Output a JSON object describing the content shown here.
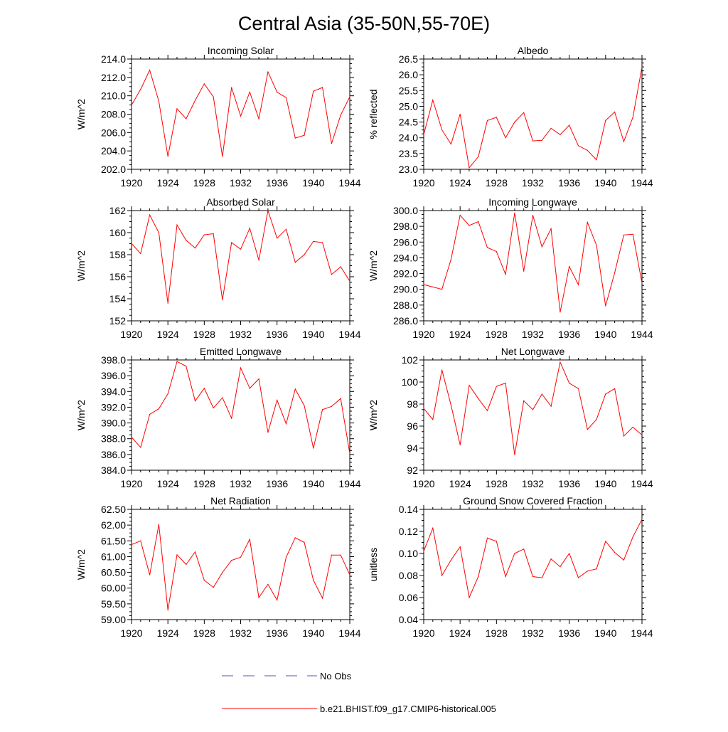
{
  "figure": {
    "title": "Central Asia (35-50N,55-70E)"
  },
  "legend": {
    "items": [
      {
        "label": "No Obs",
        "color": "#5555aa",
        "style": "dashed"
      },
      {
        "label": "b.e21.BHIST.f09_g17.CMIP6-historical.005",
        "color": "#ff0000",
        "style": "solid"
      }
    ]
  },
  "chart_data": [
    {
      "type": "line",
      "title": "Incoming Solar",
      "ylabel": "W/m^2",
      "ylim": [
        202.0,
        214.0
      ],
      "yticks": [
        "202.0",
        "204.0",
        "206.0",
        "208.0",
        "210.0",
        "212.0",
        "214.0"
      ],
      "ytick_values": [
        202,
        204,
        206,
        208,
        210,
        212,
        214
      ],
      "xlim": [
        1920,
        1944
      ],
      "xticks": [
        "1920",
        "1924",
        "1928",
        "1932",
        "1936",
        "1940",
        "1944"
      ],
      "x": [
        1920,
        1921,
        1922,
        1923,
        1924,
        1925,
        1926,
        1927,
        1928,
        1929,
        1930,
        1931,
        1932,
        1933,
        1934,
        1935,
        1936,
        1937,
        1938,
        1939,
        1940,
        1941,
        1942,
        1943,
        1944
      ],
      "series": [
        {
          "name": "b.e21.BHIST.f09_g17.CMIP6-historical.005",
          "color": "#ff0000",
          "values": [
            209.0,
            210.7,
            212.8,
            209.4,
            203.4,
            208.6,
            207.5,
            209.5,
            211.3,
            209.9,
            203.4,
            210.9,
            207.8,
            210.4,
            207.5,
            212.6,
            210.4,
            209.8,
            205.4,
            205.7,
            210.5,
            210.9,
            204.8,
            207.9,
            209.9
          ]
        }
      ]
    },
    {
      "type": "line",
      "title": "Albedo",
      "ylabel": "% reflected",
      "ylim": [
        23.0,
        26.5
      ],
      "yticks": [
        "23.0",
        "23.5",
        "24.0",
        "24.5",
        "25.0",
        "25.5",
        "26.0",
        "26.5"
      ],
      "ytick_values": [
        23.0,
        23.5,
        24.0,
        24.5,
        25.0,
        25.5,
        26.0,
        26.5
      ],
      "xlim": [
        1920,
        1944
      ],
      "xticks": [
        "1920",
        "1924",
        "1928",
        "1932",
        "1936",
        "1940",
        "1944"
      ],
      "x": [
        1920,
        1921,
        1922,
        1923,
        1924,
        1925,
        1926,
        1927,
        1928,
        1929,
        1930,
        1931,
        1932,
        1933,
        1934,
        1935,
        1936,
        1937,
        1938,
        1939,
        1940,
        1941,
        1942,
        1943,
        1944
      ],
      "series": [
        {
          "name": "b.e21.BHIST.f09_g17.CMIP6-historical.005",
          "color": "#ff0000",
          "values": [
            24.1,
            25.2,
            24.25,
            23.8,
            24.75,
            23.05,
            23.4,
            24.55,
            24.65,
            24.0,
            24.5,
            24.8,
            23.9,
            23.92,
            24.3,
            24.1,
            24.4,
            23.75,
            23.6,
            23.3,
            24.55,
            24.82,
            23.88,
            24.65,
            26.25
          ]
        }
      ]
    },
    {
      "type": "line",
      "title": "Absorbed Solar",
      "ylabel": "W/m^2",
      "ylim": [
        152,
        162
      ],
      "yticks": [
        "152",
        "154",
        "156",
        "158",
        "160",
        "162"
      ],
      "ytick_values": [
        152,
        154,
        156,
        158,
        160,
        162
      ],
      "xlim": [
        1920,
        1944
      ],
      "xticks": [
        "1920",
        "1924",
        "1928",
        "1932",
        "1936",
        "1940",
        "1944"
      ],
      "x": [
        1920,
        1921,
        1922,
        1923,
        1924,
        1925,
        1926,
        1927,
        1928,
        1929,
        1930,
        1931,
        1932,
        1933,
        1934,
        1935,
        1936,
        1937,
        1938,
        1939,
        1940,
        1941,
        1942,
        1943,
        1944
      ],
      "series": [
        {
          "name": "b.e21.BHIST.f09_g17.CMIP6-historical.005",
          "color": "#ff0000",
          "values": [
            159.0,
            158.1,
            161.6,
            160.0,
            153.6,
            160.7,
            159.3,
            158.6,
            159.8,
            159.9,
            153.9,
            159.1,
            158.5,
            160.4,
            157.5,
            162.0,
            159.5,
            160.3,
            157.3,
            158.0,
            159.2,
            159.1,
            156.2,
            156.9,
            155.6
          ]
        }
      ]
    },
    {
      "type": "line",
      "title": "Incoming Longwave",
      "ylabel": "W/m^2",
      "ylim": [
        286.0,
        300.0
      ],
      "yticks": [
        "286.0",
        "288.0",
        "290.0",
        "292.0",
        "294.0",
        "296.0",
        "298.0",
        "300.0"
      ],
      "ytick_values": [
        286,
        288,
        290,
        292,
        294,
        296,
        298,
        300
      ],
      "xlim": [
        1920,
        1944
      ],
      "xticks": [
        "1920",
        "1924",
        "1928",
        "1932",
        "1936",
        "1940",
        "1944"
      ],
      "x": [
        1920,
        1921,
        1922,
        1923,
        1924,
        1925,
        1926,
        1927,
        1928,
        1929,
        1930,
        1931,
        1932,
        1933,
        1934,
        1935,
        1936,
        1937,
        1938,
        1939,
        1940,
        1941,
        1942,
        1943,
        1944
      ],
      "series": [
        {
          "name": "b.e21.BHIST.f09_g17.CMIP6-historical.005",
          "color": "#ff0000",
          "values": [
            290.6,
            290.3,
            290.0,
            293.8,
            299.4,
            298.1,
            298.6,
            295.3,
            294.8,
            291.9,
            299.7,
            292.3,
            299.4,
            295.4,
            297.7,
            287.1,
            292.9,
            290.6,
            298.5,
            295.6,
            287.9,
            292.1,
            296.9,
            297.0,
            290.8
          ]
        }
      ]
    },
    {
      "type": "line",
      "title": "Emitted Longwave",
      "ylabel": "W/m^2",
      "ylim": [
        384.0,
        398.0
      ],
      "yticks": [
        "384.0",
        "386.0",
        "388.0",
        "390.0",
        "392.0",
        "394.0",
        "396.0",
        "398.0"
      ],
      "ytick_values": [
        384,
        386,
        388,
        390,
        392,
        394,
        396,
        398
      ],
      "xlim": [
        1920,
        1944
      ],
      "xticks": [
        "1920",
        "1924",
        "1928",
        "1932",
        "1936",
        "1940",
        "1944"
      ],
      "x": [
        1920,
        1921,
        1922,
        1923,
        1924,
        1925,
        1926,
        1927,
        1928,
        1929,
        1930,
        1931,
        1932,
        1933,
        1934,
        1935,
        1936,
        1937,
        1938,
        1939,
        1940,
        1941,
        1942,
        1943,
        1944
      ],
      "series": [
        {
          "name": "b.e21.BHIST.f09_g17.CMIP6-historical.005",
          "color": "#ff0000",
          "values": [
            388.2,
            386.9,
            391.1,
            391.8,
            393.7,
            397.8,
            397.2,
            392.8,
            394.4,
            391.9,
            393.2,
            390.6,
            397.0,
            394.4,
            395.6,
            388.8,
            392.9,
            389.9,
            394.3,
            392.2,
            386.8,
            391.7,
            392.1,
            393.1,
            386.1
          ]
        }
      ]
    },
    {
      "type": "line",
      "title": "Net Longwave",
      "ylabel": "W/m^2",
      "ylim": [
        92,
        102
      ],
      "yticks": [
        "92",
        "94",
        "96",
        "98",
        "100",
        "102"
      ],
      "ytick_values": [
        92,
        94,
        96,
        98,
        100,
        102
      ],
      "xlim": [
        1920,
        1944
      ],
      "xticks": [
        "1920",
        "1924",
        "1928",
        "1932",
        "1936",
        "1940",
        "1944"
      ],
      "x": [
        1920,
        1921,
        1922,
        1923,
        1924,
        1925,
        1926,
        1927,
        1928,
        1929,
        1930,
        1931,
        1932,
        1933,
        1934,
        1935,
        1936,
        1937,
        1938,
        1939,
        1940,
        1941,
        1942,
        1943,
        1944
      ],
      "series": [
        {
          "name": "b.e21.BHIST.f09_g17.CMIP6-historical.005",
          "color": "#ff0000",
          "values": [
            97.6,
            96.6,
            101.1,
            97.9,
            94.3,
            99.7,
            98.5,
            97.4,
            99.6,
            99.9,
            93.4,
            98.3,
            97.5,
            98.9,
            97.8,
            101.8,
            99.9,
            99.4,
            95.7,
            96.6,
            98.9,
            99.4,
            95.1,
            95.9,
            95.2
          ]
        }
      ]
    },
    {
      "type": "line",
      "title": "Net Radiation",
      "ylabel": "W/m^2",
      "ylim": [
        59.0,
        62.5
      ],
      "yticks": [
        "59.00",
        "59.50",
        "60.00",
        "60.50",
        "61.00",
        "61.50",
        "62.00",
        "62.50"
      ],
      "ytick_values": [
        59.0,
        59.5,
        60.0,
        60.5,
        61.0,
        61.5,
        62.0,
        62.5
      ],
      "xlim": [
        1920,
        1944
      ],
      "xticks": [
        "1920",
        "1924",
        "1928",
        "1932",
        "1936",
        "1940",
        "1944"
      ],
      "x": [
        1920,
        1921,
        1922,
        1923,
        1924,
        1925,
        1926,
        1927,
        1928,
        1929,
        1930,
        1931,
        1932,
        1933,
        1934,
        1935,
        1936,
        1937,
        1938,
        1939,
        1940,
        1941,
        1942,
        1943,
        1944
      ],
      "series": [
        {
          "name": "b.e21.BHIST.f09_g17.CMIP6-historical.005",
          "color": "#ff0000",
          "values": [
            61.38,
            61.5,
            60.42,
            62.02,
            59.3,
            61.06,
            60.75,
            61.15,
            60.25,
            60.02,
            60.5,
            60.88,
            60.98,
            61.55,
            59.7,
            60.12,
            59.62,
            60.98,
            61.6,
            61.45,
            60.25,
            59.68,
            61.05,
            61.05,
            60.42
          ]
        }
      ]
    },
    {
      "type": "line",
      "title": "Ground Snow Covered Fraction",
      "ylabel": "unitless",
      "ylim": [
        0.04,
        0.14
      ],
      "yticks": [
        "0.04",
        "0.06",
        "0.08",
        "0.10",
        "0.12",
        "0.14"
      ],
      "ytick_values": [
        0.04,
        0.06,
        0.08,
        0.1,
        0.12,
        0.14
      ],
      "xlim": [
        1920,
        1944
      ],
      "xticks": [
        "1920",
        "1924",
        "1928",
        "1932",
        "1936",
        "1940",
        "1944"
      ],
      "x": [
        1920,
        1921,
        1922,
        1923,
        1924,
        1925,
        1926,
        1927,
        1928,
        1929,
        1930,
        1931,
        1932,
        1933,
        1934,
        1935,
        1936,
        1937,
        1938,
        1939,
        1940,
        1941,
        1942,
        1943,
        1944
      ],
      "series": [
        {
          "name": "b.e21.BHIST.f09_g17.CMIP6-historical.005",
          "color": "#ff0000",
          "values": [
            0.102,
            0.123,
            0.08,
            0.094,
            0.106,
            0.06,
            0.079,
            0.114,
            0.111,
            0.079,
            0.1,
            0.104,
            0.079,
            0.078,
            0.095,
            0.088,
            0.1,
            0.078,
            0.084,
            0.086,
            0.111,
            0.101,
            0.094,
            0.115,
            0.131
          ]
        }
      ]
    }
  ]
}
